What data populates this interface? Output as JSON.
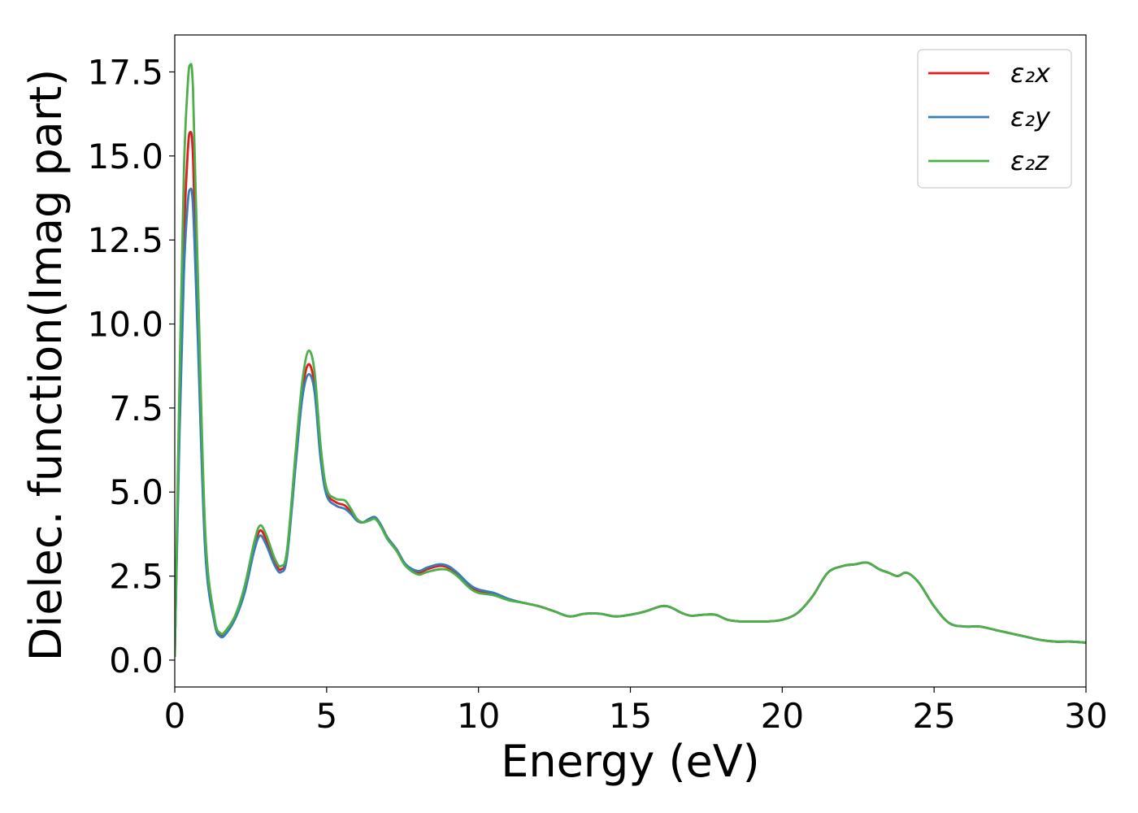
{
  "chart_data": {
    "type": "line",
    "xlabel": "Energy (eV)",
    "ylabel": "Dielec. function(Imag part)",
    "xlim": [
      0,
      30
    ],
    "ylim": [
      -0.8,
      18.6
    ],
    "xticks": [
      "0",
      "5",
      "10",
      "15",
      "20",
      "25",
      "30"
    ],
    "xtick_values": [
      0,
      5,
      10,
      15,
      20,
      25,
      30
    ],
    "yticks": [
      "0.0",
      "2.5",
      "5.0",
      "7.5",
      "10.0",
      "12.5",
      "15.0",
      "17.5"
    ],
    "ytick_values": [
      0,
      2.5,
      5,
      7.5,
      10,
      12.5,
      15,
      17.5
    ],
    "legend_placement": "top-right",
    "grid": false,
    "series": [
      {
        "name": "ε₂x",
        "color": "#e41a1c",
        "x": [
          0,
          0.15,
          0.3,
          0.42,
          0.5,
          0.6,
          0.75,
          1.0,
          1.3,
          1.5,
          1.7,
          2.0,
          2.3,
          2.6,
          2.8,
          3.0,
          3.3,
          3.5,
          3.7,
          4.0,
          4.2,
          4.4,
          4.6,
          4.8,
          5.0,
          5.3,
          5.6,
          5.8,
          6.0,
          6.2,
          6.4,
          6.6,
          6.8,
          7.0,
          7.3,
          7.6,
          8.0,
          8.3,
          8.7,
          9.0,
          9.3,
          9.7,
          10.0,
          10.5,
          11.0,
          11.5,
          12.0,
          12.5,
          13.0,
          13.5,
          14.0,
          14.5,
          15.0,
          15.5,
          16.0,
          16.3,
          16.7,
          17.0,
          17.4,
          17.8,
          18.2,
          18.6,
          19.0,
          19.5,
          20.0,
          20.5,
          21.0,
          21.5,
          22.0,
          22.4,
          22.8,
          23.2,
          23.5,
          23.8,
          24.1,
          24.5,
          25.0,
          25.5,
          26.0,
          26.5,
          27.0,
          27.5,
          28.0,
          28.5,
          29.0,
          29.5,
          30.0
        ],
        "y": [
          0.1,
          7.0,
          12.5,
          15.0,
          15.7,
          15.0,
          10.5,
          3.5,
          1.2,
          0.75,
          0.85,
          1.3,
          2.1,
          3.3,
          3.85,
          3.6,
          2.9,
          2.7,
          3.2,
          6.2,
          8.0,
          8.8,
          8.2,
          6.2,
          5.0,
          4.7,
          4.6,
          4.4,
          4.15,
          4.1,
          4.2,
          4.25,
          4.0,
          3.65,
          3.3,
          2.85,
          2.6,
          2.7,
          2.8,
          2.75,
          2.55,
          2.2,
          2.05,
          1.95,
          1.8,
          1.7,
          1.6,
          1.45,
          1.3,
          1.38,
          1.38,
          1.3,
          1.35,
          1.45,
          1.6,
          1.58,
          1.4,
          1.32,
          1.35,
          1.35,
          1.2,
          1.15,
          1.15,
          1.15,
          1.2,
          1.4,
          1.9,
          2.6,
          2.8,
          2.85,
          2.9,
          2.7,
          2.6,
          2.5,
          2.6,
          2.3,
          1.6,
          1.1,
          1.0,
          1.0,
          0.9,
          0.8,
          0.7,
          0.6,
          0.55,
          0.55,
          0.52
        ]
      },
      {
        "name": "ε₂y",
        "color": "#377eb8",
        "x": [
          0,
          0.15,
          0.3,
          0.42,
          0.5,
          0.6,
          0.75,
          1.0,
          1.3,
          1.5,
          1.7,
          2.0,
          2.3,
          2.6,
          2.8,
          3.0,
          3.3,
          3.5,
          3.7,
          4.0,
          4.2,
          4.4,
          4.6,
          4.8,
          5.0,
          5.3,
          5.6,
          5.8,
          6.0,
          6.2,
          6.4,
          6.6,
          6.8,
          7.0,
          7.3,
          7.6,
          8.0,
          8.3,
          8.7,
          9.0,
          9.3,
          9.7,
          10.0,
          10.5,
          11.0,
          11.5,
          12.0,
          12.5,
          13.0,
          13.5,
          14.0,
          14.5,
          15.0,
          15.5,
          16.0,
          16.3,
          16.7,
          17.0,
          17.4,
          17.8,
          18.2,
          18.6,
          19.0,
          19.5,
          20.0,
          20.5,
          21.0,
          21.5,
          22.0,
          22.4,
          22.8,
          23.2,
          23.5,
          23.8,
          24.1,
          24.5,
          25.0,
          25.5,
          26.0,
          26.5,
          27.0,
          27.5,
          28.0,
          28.5,
          29.0,
          29.5,
          30.0
        ],
        "y": [
          0.1,
          6.5,
          11.5,
          13.5,
          14.0,
          13.5,
          9.8,
          3.3,
          1.15,
          0.7,
          0.8,
          1.25,
          2.0,
          3.2,
          3.7,
          3.45,
          2.8,
          2.62,
          3.1,
          6.0,
          7.8,
          8.5,
          8.0,
          6.0,
          4.9,
          4.6,
          4.5,
          4.35,
          4.15,
          4.1,
          4.2,
          4.25,
          4.0,
          3.65,
          3.3,
          2.85,
          2.65,
          2.75,
          2.85,
          2.8,
          2.6,
          2.25,
          2.1,
          2.0,
          1.82,
          1.7,
          1.6,
          1.45,
          1.3,
          1.38,
          1.38,
          1.3,
          1.35,
          1.45,
          1.6,
          1.58,
          1.4,
          1.32,
          1.35,
          1.35,
          1.2,
          1.15,
          1.15,
          1.15,
          1.2,
          1.4,
          1.9,
          2.6,
          2.8,
          2.85,
          2.9,
          2.7,
          2.6,
          2.5,
          2.6,
          2.3,
          1.6,
          1.1,
          1.0,
          1.0,
          0.9,
          0.8,
          0.7,
          0.6,
          0.55,
          0.55,
          0.52
        ]
      },
      {
        "name": "ε₂z",
        "color": "#4daf4a",
        "x": [
          0,
          0.15,
          0.3,
          0.42,
          0.5,
          0.6,
          0.75,
          1.0,
          1.3,
          1.5,
          1.7,
          2.0,
          2.3,
          2.6,
          2.8,
          3.0,
          3.3,
          3.5,
          3.7,
          4.0,
          4.2,
          4.4,
          4.6,
          4.8,
          5.0,
          5.3,
          5.6,
          5.8,
          6.0,
          6.2,
          6.4,
          6.6,
          6.8,
          7.0,
          7.3,
          7.6,
          8.0,
          8.3,
          8.7,
          9.0,
          9.3,
          9.7,
          10.0,
          10.5,
          11.0,
          11.5,
          12.0,
          12.5,
          13.0,
          13.5,
          14.0,
          14.5,
          15.0,
          15.5,
          16.0,
          16.3,
          16.7,
          17.0,
          17.4,
          17.8,
          18.2,
          18.6,
          19.0,
          19.5,
          20.0,
          20.5,
          21.0,
          21.5,
          22.0,
          22.4,
          22.8,
          23.2,
          23.5,
          23.8,
          24.1,
          24.5,
          25.0,
          25.5,
          26.0,
          26.5,
          27.0,
          27.5,
          28.0,
          28.5,
          29.0,
          29.5,
          30.0
        ],
        "y": [
          0.1,
          8.0,
          14.5,
          17.0,
          17.7,
          17.0,
          11.8,
          3.9,
          1.3,
          0.8,
          0.9,
          1.35,
          2.2,
          3.45,
          4.0,
          3.75,
          3.0,
          2.8,
          3.3,
          6.4,
          8.3,
          9.2,
          8.6,
          6.4,
          5.1,
          4.8,
          4.75,
          4.5,
          4.2,
          4.1,
          4.15,
          4.2,
          3.95,
          3.6,
          3.25,
          2.8,
          2.55,
          2.62,
          2.7,
          2.68,
          2.5,
          2.15,
          2.0,
          1.93,
          1.78,
          1.7,
          1.6,
          1.45,
          1.3,
          1.38,
          1.38,
          1.3,
          1.35,
          1.45,
          1.6,
          1.58,
          1.4,
          1.32,
          1.35,
          1.35,
          1.2,
          1.15,
          1.15,
          1.15,
          1.2,
          1.4,
          1.9,
          2.6,
          2.8,
          2.85,
          2.9,
          2.7,
          2.6,
          2.5,
          2.6,
          2.3,
          1.6,
          1.1,
          1.0,
          1.0,
          0.9,
          0.8,
          0.7,
          0.6,
          0.55,
          0.55,
          0.52
        ]
      }
    ]
  }
}
